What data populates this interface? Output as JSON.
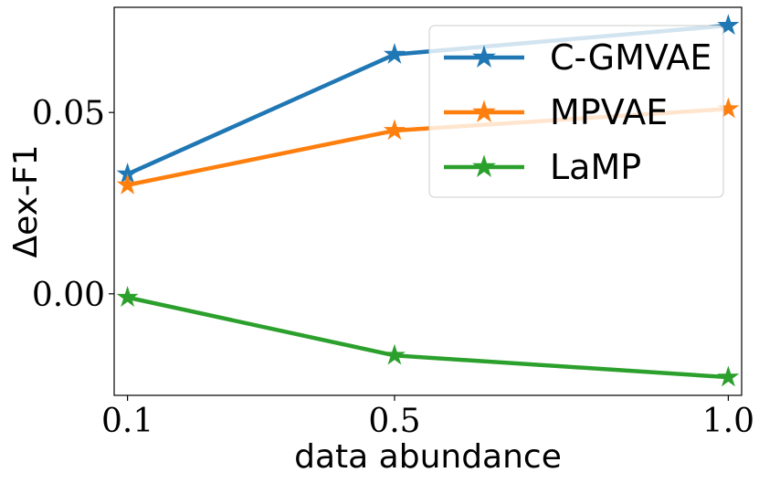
{
  "chart_data": {
    "type": "line",
    "x": [
      0.1,
      0.5,
      1.0
    ],
    "x_tick_labels": [
      "0.1",
      "0.5",
      "1.0"
    ],
    "y_tick_values": [
      0.0,
      0.05
    ],
    "y_tick_labels": [
      "0.00",
      "0.05"
    ],
    "xlabel": "data abundance",
    "ylabel": "Δex-F1",
    "xlim": [
      0.08,
      1.02
    ],
    "ylim": [
      -0.028,
      0.079
    ],
    "grid": false,
    "legend_position": "top-right",
    "series": [
      {
        "name": "C-GMVAE",
        "color": "#1f77b4",
        "values": [
          0.033,
          0.066,
          0.074
        ]
      },
      {
        "name": "MPVAE",
        "color": "#ff7f0e",
        "values": [
          0.03,
          0.045,
          0.051
        ]
      },
      {
        "name": "LaMP",
        "color": "#2ca02c",
        "values": [
          -0.001,
          -0.017,
          -0.023
        ]
      }
    ],
    "marker": "star"
  }
}
